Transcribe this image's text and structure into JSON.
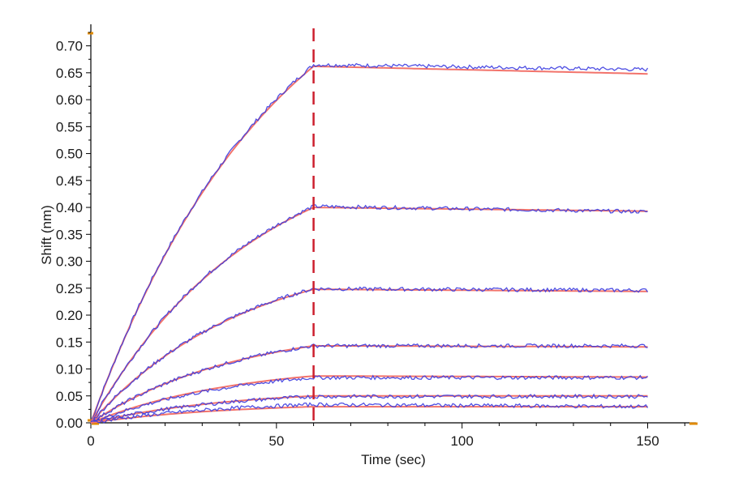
{
  "chart_data": {
    "type": "line",
    "title": "",
    "xlabel": "Time (sec)",
    "ylabel": "Shift (nm)",
    "xlim": [
      0,
      163
    ],
    "ylim": [
      0,
      0.74
    ],
    "x_ticks": [
      0,
      50,
      100,
      150
    ],
    "x_tick_labels": [
      "0",
      "50",
      "100",
      "150"
    ],
    "y_ticks": [
      0,
      0.05,
      0.1,
      0.15,
      0.2,
      0.25,
      0.3,
      0.35,
      0.4,
      0.45,
      0.5,
      0.55,
      0.6,
      0.65,
      0.7
    ],
    "y_tick_labels": [
      "0.00",
      "0.05",
      "0.10",
      "0.15",
      "0.20",
      "0.25",
      "0.30",
      "0.35",
      "0.40",
      "0.45",
      "0.50",
      "0.55",
      "0.60",
      "0.65",
      "0.70"
    ],
    "grid": false,
    "annotations": [
      {
        "kind": "vertical-dashed-line",
        "x": 60,
        "color": "#cc1f2e"
      }
    ],
    "association_end": 60,
    "x_end": 150,
    "series": [
      {
        "kind": "measured",
        "color": "#3c3ce0",
        "plateau": 0.665,
        "end": 0.656,
        "fit_plateau": 0.662,
        "fit_end": 0.648
      },
      {
        "kind": "measured",
        "color": "#3c3ce0",
        "plateau": 0.402,
        "end": 0.392,
        "fit_plateau": 0.4,
        "fit_end": 0.393
      },
      {
        "kind": "measured",
        "color": "#3c3ce0",
        "plateau": 0.249,
        "end": 0.246,
        "fit_plateau": 0.248,
        "fit_end": 0.244
      },
      {
        "kind": "measured",
        "color": "#3c3ce0",
        "plateau": 0.143,
        "end": 0.143,
        "fit_plateau": 0.143,
        "fit_end": 0.141
      },
      {
        "kind": "measured",
        "color": "#3c3ce0",
        "plateau": 0.084,
        "end": 0.084,
        "fit_plateau": 0.087,
        "fit_end": 0.085
      },
      {
        "kind": "measured",
        "color": "#3c3ce0",
        "plateau": 0.049,
        "end": 0.049,
        "fit_plateau": 0.05,
        "fit_end": 0.05
      },
      {
        "kind": "measured",
        "color": "#3c3ce0",
        "plateau": 0.034,
        "end": 0.03,
        "fit_plateau": 0.03,
        "fit_end": 0.03
      }
    ],
    "colors": {
      "measured": "#3c3ce0",
      "fit": "#f2736b",
      "overlap": "#9a2a6a",
      "axis_marker": "#e08a00",
      "guide": "#cc1f2e"
    }
  }
}
